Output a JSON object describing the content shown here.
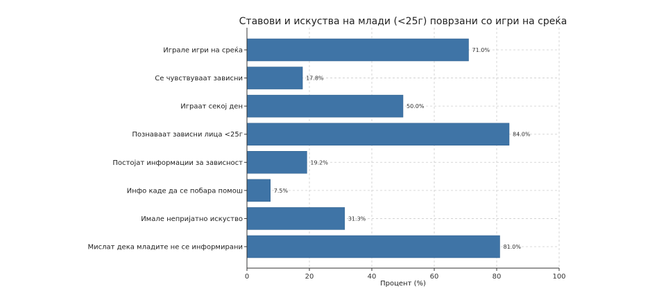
{
  "chart_data": {
    "type": "bar",
    "orientation": "horizontal",
    "title": "Ставови и искуства на млади (<25г) поврзани со игри на среќа",
    "xlabel": "Процент (%)",
    "ylabel": "",
    "xlim": [
      0,
      100
    ],
    "xticks": [
      0,
      20,
      40,
      60,
      80,
      100
    ],
    "grid": true,
    "bar_color": "#3f74a6",
    "categories": [
      "Играле игри на среќа",
      "Се чувствуваат зависни",
      "Играат секој ден",
      "Познаваат зависни лица <25г",
      "Постојат информации за зависност",
      "Инфо каде да се побара помош",
      "Имале непријатно искуство",
      "Мислат дека младите не се информирани"
    ],
    "values": [
      71.0,
      17.8,
      50.0,
      84.0,
      19.2,
      7.5,
      31.3,
      81.0
    ],
    "value_labels": [
      "71.0%",
      "17.8%",
      "50.0%",
      "84.0%",
      "19.2%",
      "7.5%",
      "31.3%",
      "81.0%"
    ]
  }
}
